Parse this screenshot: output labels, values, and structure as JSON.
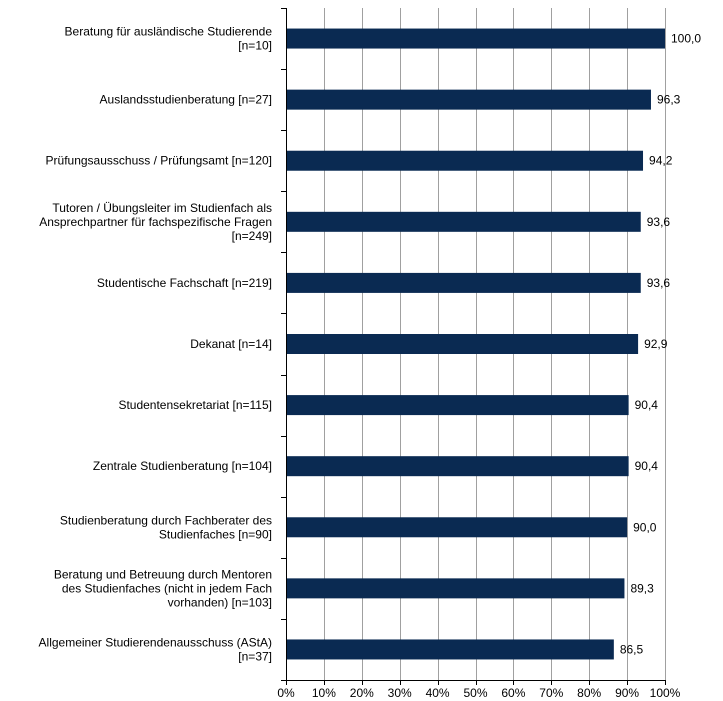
{
  "chart_data": {
    "type": "bar",
    "orientation": "horizontal",
    "categories": [
      [
        "Beratung für ausländische Studierende",
        "[n=10]"
      ],
      [
        "Auslandsstudienberatung [n=27]"
      ],
      [
        "Prüfungsausschuss / Prüfungsamt [n=120]"
      ],
      [
        "Tutoren / Übungsleiter im Studienfach als",
        "Ansprechpartner für fachspezifische Fragen",
        "[n=249]"
      ],
      [
        "Studentische Fachschaft [n=219]"
      ],
      [
        "Dekanat [n=14]"
      ],
      [
        "Studentensekretariat [n=115]"
      ],
      [
        "Zentrale Studienberatung [n=104]"
      ],
      [
        "Studienberatung durch Fachberater des",
        "Studienfaches [n=90]"
      ],
      [
        "Beratung und Betreuung durch Mentoren",
        "des Studienfaches (nicht in jedem Fach",
        "vorhanden) [n=103]"
      ],
      [
        "Allgemeiner Studierendenausschuss (AStA)",
        "[n=37]"
      ]
    ],
    "values": [
      100.0,
      96.3,
      94.2,
      93.6,
      93.6,
      92.9,
      90.4,
      90.4,
      90.0,
      89.3,
      86.5
    ],
    "value_labels": [
      "100,0",
      "96,3",
      "94,2",
      "93,6",
      "93,6",
      "92,9",
      "90,4",
      "90,4",
      "90,0",
      "89,3",
      "86,5"
    ],
    "xlim": [
      0,
      100
    ],
    "x_ticks": [
      "0%",
      "10%",
      "20%",
      "30%",
      "40%",
      "50%",
      "60%",
      "70%",
      "80%",
      "90%",
      "100%"
    ],
    "grid": true,
    "legend": "none",
    "bar_color": "#0a2a52",
    "grid_color": "#a0a0a0"
  }
}
